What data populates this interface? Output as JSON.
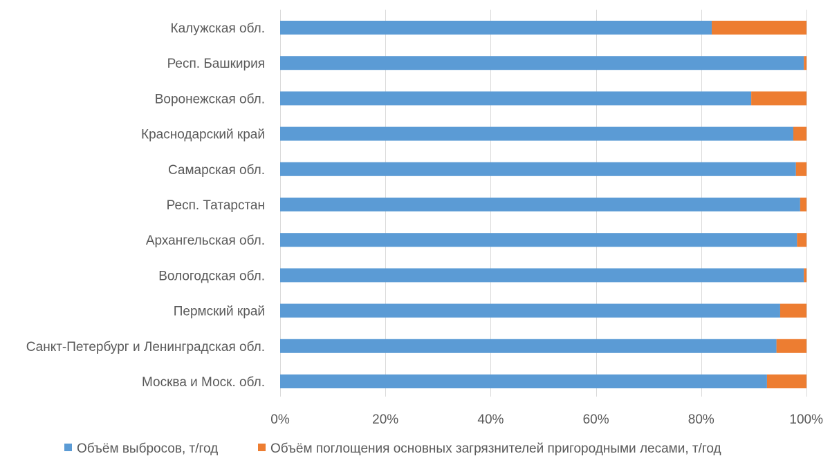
{
  "chart_data": {
    "type": "bar",
    "orientation": "horizontal",
    "stacking": "percent",
    "categories": [
      "Калужская обл.",
      "Респ. Башкирия",
      "Воронежская обл.",
      "Краснодарский край",
      "Самарская обл.",
      "Респ. Татарстан",
      "Архангельская обл.",
      "Вологодская обл.",
      "Пермский край",
      "Санкт-Петербург и Ленинградская обл.",
      "Москва и Моск. обл."
    ],
    "series": [
      {
        "name": "Объём выбросов, т/год",
        "color": "#5b9bd5",
        "values": [
          82,
          99.5,
          89.5,
          97.5,
          98,
          98.8,
          98.2,
          99.5,
          95,
          94.3,
          92.5
        ]
      },
      {
        "name": "Объём поглощения основных загрязнителей пригородными лесами, т/год",
        "color": "#ed7d31",
        "values": [
          18,
          0.5,
          10.5,
          2.5,
          2,
          1.2,
          1.8,
          0.5,
          5,
          5.7,
          7.5
        ]
      }
    ],
    "x_ticks": [
      "0%",
      "20%",
      "40%",
      "60%",
      "80%",
      "100%"
    ],
    "xlim": [
      0,
      100
    ],
    "grid": true,
    "legend_position": "bottom"
  }
}
